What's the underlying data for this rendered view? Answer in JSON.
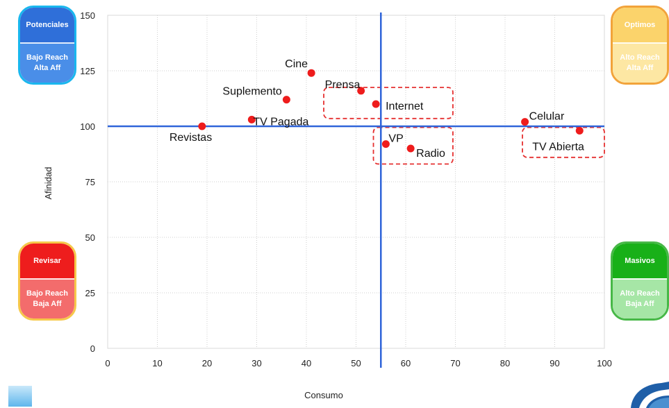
{
  "chart_data": {
    "type": "scatter",
    "xlabel": "Consumo",
    "ylabel": "Afinidad",
    "xlim": [
      0,
      100
    ],
    "ylim": [
      0,
      150
    ],
    "x_ticks": [
      "0",
      "10",
      "20",
      "30",
      "40",
      "50",
      "60",
      "70",
      "80",
      "90",
      "100"
    ],
    "y_ticks": [
      "0",
      "25",
      "50",
      "75",
      "100",
      "125",
      "150"
    ],
    "grid": true,
    "reference_lines": {
      "x": 55,
      "y": 100
    },
    "colors": {
      "points": "#ee1c1c",
      "reference": "#2f64d9",
      "highlight_box": "#e53030"
    },
    "points": [
      {
        "label": "Cine",
        "x": 41,
        "y": 124
      },
      {
        "label": "Suplemento",
        "x": 36,
        "y": 112
      },
      {
        "label": "TV Pagada",
        "x": 29,
        "y": 103
      },
      {
        "label": "Revistas",
        "x": 19,
        "y": 100
      },
      {
        "label": "Prensa",
        "x": 51,
        "y": 116
      },
      {
        "label": "Internet",
        "x": 54,
        "y": 110
      },
      {
        "label": "VP",
        "x": 56,
        "y": 92
      },
      {
        "label": "Radio",
        "x": 61,
        "y": 90
      },
      {
        "label": "Celular",
        "x": 84,
        "y": 102
      },
      {
        "label": "TV Abierta",
        "x": 95,
        "y": 98
      }
    ],
    "highlight_groups": [
      {
        "x_range": [
          43.5,
          69.5
        ],
        "y_range": [
          103.5,
          117.5
        ]
      },
      {
        "x_range": [
          53.5,
          69.5
        ],
        "y_range": [
          83,
          99.5
        ]
      },
      {
        "x_range": [
          83.5,
          100
        ],
        "y_range": [
          86,
          99.5
        ]
      }
    ]
  },
  "quadrants": {
    "potenciales": {
      "title": "Potenciales",
      "line1": "Bajo Reach",
      "line2": "Alta Aff"
    },
    "optimos": {
      "title": "Optimos",
      "line1": "Alto Reach",
      "line2": "Alta Aff"
    },
    "revisar": {
      "title": "Revisar",
      "line1": "Bajo Reach",
      "line2": "Baja Aff"
    },
    "masivos": {
      "title": "Masivos",
      "line1": "Alto Reach",
      "line2": "Baja Aff"
    }
  }
}
